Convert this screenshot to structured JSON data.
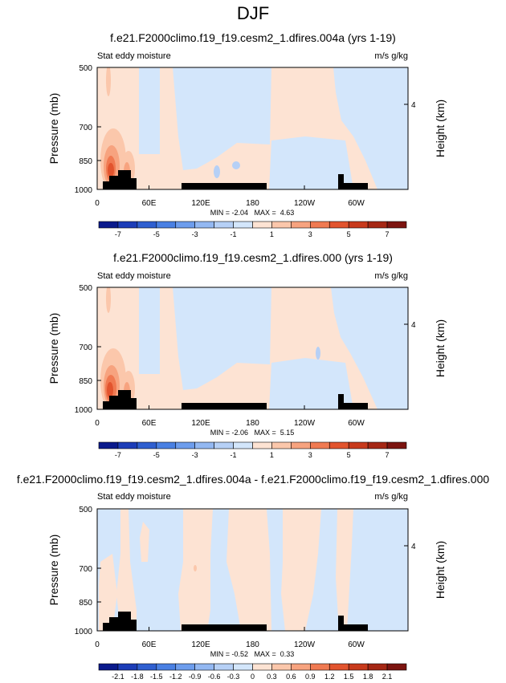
{
  "page_title": "DJF",
  "colors": {
    "bluescale": [
      "#0a1a8c",
      "#1c3db8",
      "#2f5fd0",
      "#4a80e3",
      "#6d9ded",
      "#93b8f2",
      "#b6d0f6",
      "#d3e6fb"
    ],
    "redscale": [
      "#fde3d3",
      "#fbc7ab",
      "#f7a37f",
      "#f07a52",
      "#e2542e",
      "#c83a1c",
      "#a52714",
      "#7c1410"
    ],
    "land": "#000000"
  },
  "chart_data": [
    {
      "type": "heatmap",
      "title": "f.e21.F2000climo.f19_f19.cesm2_1.dfires.004a (yrs 1-19)",
      "left_label": "Stat eddy moisture",
      "right_label": "m/s g/kg",
      "ylabel": "Pressure (mb)",
      "y2label": "Height (km)",
      "y_ticks": [
        "500",
        "700",
        "850",
        "1000"
      ],
      "y2_ticks": [
        "4"
      ],
      "x_ticks": [
        "0",
        "60E",
        "120E",
        "180",
        "120W",
        "60W"
      ],
      "stats": "MIN = -2.04   MAX =  4.63",
      "colorbar_labels": [
        "-7",
        "-5",
        "-3",
        "-1",
        "1",
        "3",
        "5",
        "7"
      ]
    },
    {
      "type": "heatmap",
      "title": "f.e21.F2000climo.f19_f19.cesm2_1.dfires.000 (yrs 1-19)",
      "left_label": "Stat eddy moisture",
      "right_label": "m/s g/kg",
      "ylabel": "Pressure (mb)",
      "y2label": "Height (km)",
      "y_ticks": [
        "500",
        "700",
        "850",
        "1000"
      ],
      "y2_ticks": [
        "4"
      ],
      "x_ticks": [
        "0",
        "60E",
        "120E",
        "180",
        "120W",
        "60W"
      ],
      "stats": "MIN = -2.06   MAX =  5.15",
      "colorbar_labels": [
        "-7",
        "-5",
        "-3",
        "-1",
        "1",
        "3",
        "5",
        "7"
      ]
    },
    {
      "type": "heatmap",
      "title": "f.e21.F2000climo.f19_f19.cesm2_1.dfires.004a - f.e21.F2000climo.f19_f19.cesm2_1.dfires.000",
      "left_label": "Stat eddy moisture",
      "right_label": "m/s g/kg",
      "ylabel": "Pressure (mb)",
      "y2label": "Height (km)",
      "y_ticks": [
        "500",
        "700",
        "850",
        "1000"
      ],
      "y2_ticks": [
        "4"
      ],
      "x_ticks": [
        "0",
        "60E",
        "120E",
        "180",
        "120W",
        "60W"
      ],
      "stats": "MIN = -0.52   MAX =  0.33",
      "colorbar_labels": [
        "-2.1",
        "-1.8",
        "-1.5",
        "-1.2",
        "-0.9",
        "-0.6",
        "-0.3",
        "0",
        "0.3",
        "0.6",
        "0.9",
        "1.2",
        "1.5",
        "1.8",
        "2.1"
      ]
    }
  ]
}
